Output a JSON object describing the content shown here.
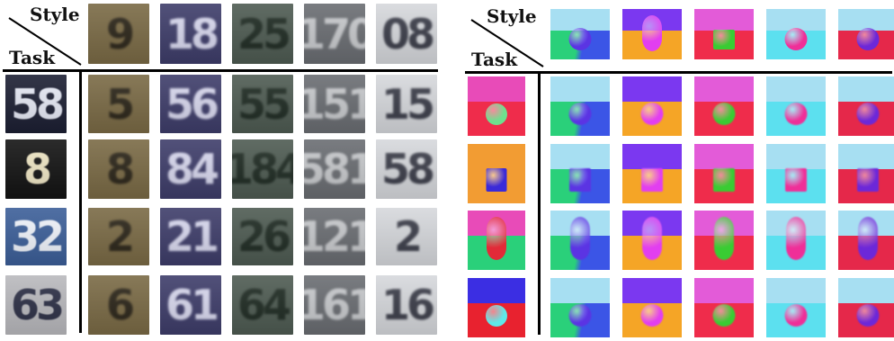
{
  "headers": {
    "style": "Style",
    "task": "Task"
  },
  "svhn": {
    "style_tiles": [
      {
        "text": "9",
        "bg": "#7a6a45",
        "fg": "#2a2418"
      },
      {
        "text": "18",
        "bg": "#3e3d6a",
        "fg": "#d8d8ee"
      },
      {
        "text": "25",
        "bg": "#4e5b52",
        "fg": "#1e2a22"
      },
      {
        "text": "170",
        "bg": "#6a6d72",
        "fg": "#c7c9cc"
      },
      {
        "text": "08",
        "bg": "#d6d8dc",
        "fg": "#3a3c48"
      }
    ],
    "task_tiles": [
      {
        "text": "58",
        "bg": "#1c1f33",
        "fg": "#e6e9f5"
      },
      {
        "text": "8",
        "bg": "#131313",
        "fg": "#efe6c4"
      },
      {
        "text": "32",
        "bg": "#3c5f99",
        "fg": "#f0f4fb"
      },
      {
        "text": "63",
        "bg": "#b9b9bd",
        "fg": "#2c2f45"
      }
    ],
    "grid": [
      [
        "5",
        "56",
        "55",
        "151",
        "15"
      ],
      [
        "8",
        "84",
        "184",
        "581",
        "58"
      ],
      [
        "2",
        "21",
        "26",
        "121",
        "2"
      ],
      [
        "6",
        "61",
        "64",
        "161",
        "16"
      ]
    ]
  },
  "shapes": {
    "style_tiles": [
      {
        "wall": "#a7dff2",
        "floor": "#2ad07a",
        "floor2": "#3b55e6",
        "obj": "#5b34e3",
        "shape": "ball"
      },
      {
        "wall": "#7b38f0",
        "floor": "#f5a526",
        "floor2": "#f5a526",
        "obj": "#e23ef0",
        "shape": "pill"
      },
      {
        "wall": "#e35bd8",
        "floor": "#ef2c4b",
        "floor2": "#ef2c4b",
        "obj": "#39cc33",
        "shape": "cube"
      },
      {
        "wall": "#a7dff2",
        "floor": "#5ce0ef",
        "floor2": "#5ce0ef",
        "obj": "#ef2f98",
        "shape": "ball"
      },
      {
        "wall": "#a7dff2",
        "floor": "#e5284a",
        "floor2": "#e5284a",
        "obj": "#6c28d8",
        "shape": "ball"
      }
    ],
    "task_tiles": [
      {
        "wall": "#e84bb8",
        "floor": "#ef2c4b",
        "floor2": "#ef2c4b",
        "obj": "#6de08e",
        "shape": "ball"
      },
      {
        "wall": "#f29c33",
        "floor": "#f29c33",
        "floor2": "#f29c33",
        "obj": "#3a2ad8",
        "shape": "cube"
      },
      {
        "wall": "#e84bb8",
        "floor": "#2ad07a",
        "floor2": "#2ad07a",
        "obj": "#e22a38",
        "shape": "pill"
      },
      {
        "wall": "#3b2ee3",
        "floor": "#e8222f",
        "floor2": "#e8222f",
        "obj": "#5fe8e8",
        "shape": "ball"
      }
    ]
  }
}
